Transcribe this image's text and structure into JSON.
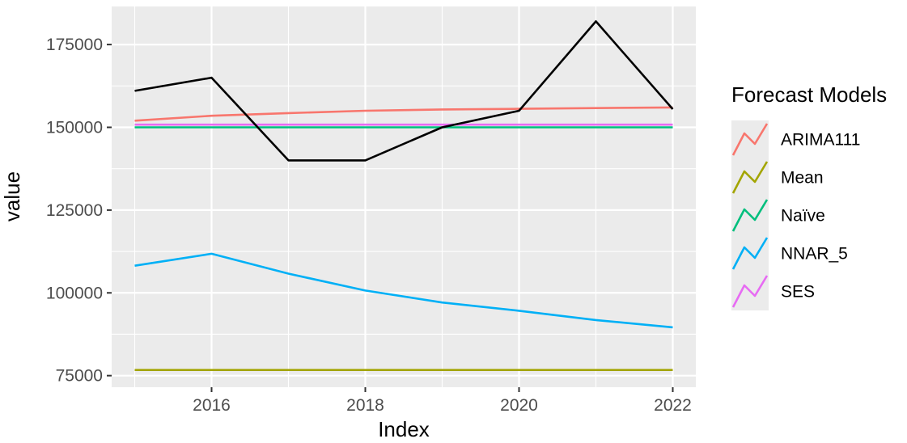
{
  "chart_data": {
    "type": "line",
    "xlabel": "Index",
    "ylabel": "value",
    "xlim": [
      2014.7,
      2022.3
    ],
    "ylim": [
      71500,
      186500
    ],
    "x_ticks": [
      2016,
      2018,
      2020,
      2022
    ],
    "y_ticks": [
      75000,
      100000,
      125000,
      150000,
      175000
    ],
    "x_tick_labels": [
      "2016",
      "2018",
      "2020",
      "2022"
    ],
    "y_tick_labels": [
      "75000",
      "100000",
      "125000",
      "150000",
      "175000"
    ],
    "grid": true,
    "panel_background": "#ebebeb",
    "actual": {
      "color": "#000000",
      "x": [
        2015,
        2016,
        2017,
        2018,
        2019,
        2020,
        2021,
        2022
      ],
      "values": [
        161000,
        165000,
        140000,
        140000,
        150000,
        155000,
        182000,
        155500
      ]
    },
    "legend": {
      "title": "Forecast Models",
      "placement": "right"
    },
    "series": [
      {
        "name": "ARIMA111",
        "color": "#f8766d",
        "x": [
          2015,
          2016,
          2017,
          2018,
          2019,
          2020,
          2021,
          2022
        ],
        "values": [
          152000,
          153500,
          154300,
          155000,
          155400,
          155600,
          155800,
          156000
        ]
      },
      {
        "name": "Mean",
        "color": "#a3a500",
        "x": [
          2015,
          2016,
          2017,
          2018,
          2019,
          2020,
          2021,
          2022
        ],
        "values": [
          76700,
          76700,
          76700,
          76700,
          76700,
          76700,
          76700,
          76700
        ]
      },
      {
        "name": "Naïve",
        "color": "#00bf7d",
        "x": [
          2015,
          2016,
          2017,
          2018,
          2019,
          2020,
          2021,
          2022
        ],
        "values": [
          150000,
          150000,
          150000,
          150000,
          150000,
          150000,
          150000,
          150000
        ]
      },
      {
        "name": "NNAR_5",
        "color": "#00b0f6",
        "x": [
          2015,
          2016,
          2017,
          2018,
          2019,
          2020,
          2021,
          2022
        ],
        "values": [
          108200,
          111800,
          105800,
          100700,
          97100,
          94600,
          91800,
          89600
        ]
      },
      {
        "name": "SES",
        "color": "#e76bf3",
        "x": [
          2015,
          2016,
          2017,
          2018,
          2019,
          2020,
          2021,
          2022
        ],
        "values": [
          150800,
          150800,
          150800,
          150800,
          150800,
          150800,
          150800,
          150800
        ]
      }
    ]
  }
}
